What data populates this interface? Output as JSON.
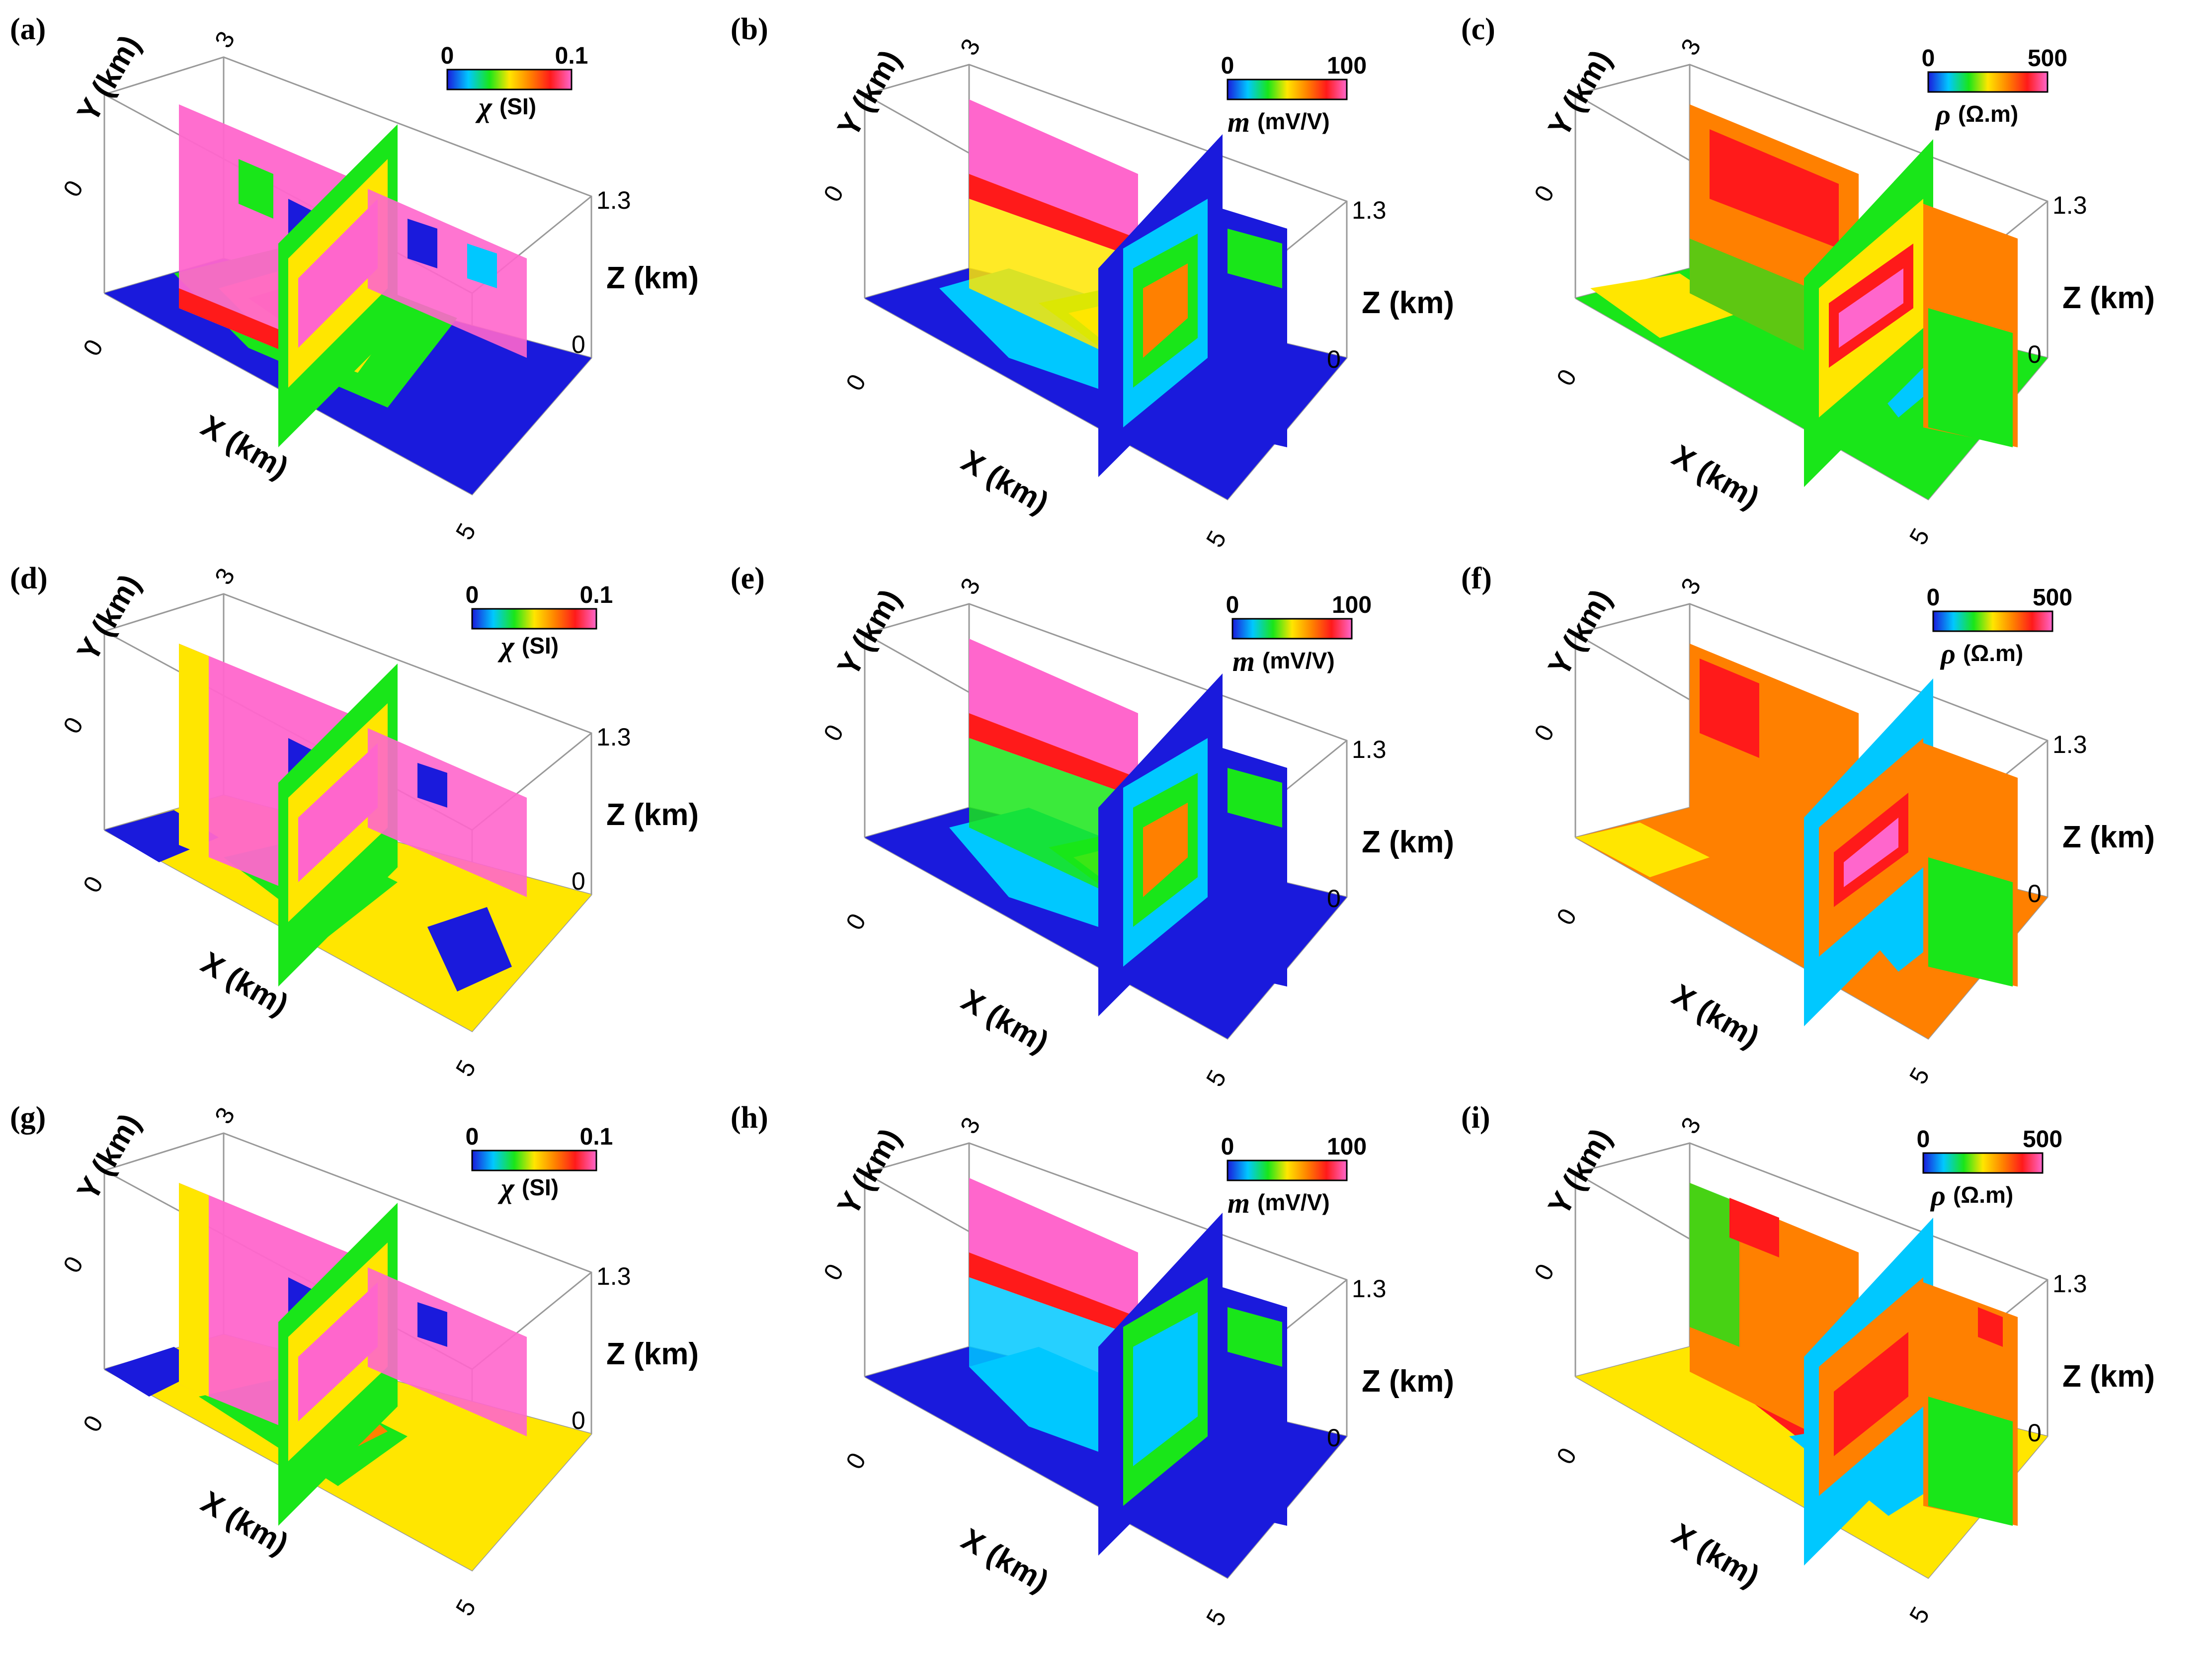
{
  "axes": {
    "x_label": "X (km)",
    "y_label": "Y (km)",
    "z_label": "Z (km)",
    "x_ticks": [
      "0",
      "5"
    ],
    "y_ticks": [
      "0",
      "3"
    ],
    "z_ticks": [
      "0",
      "1.3"
    ]
  },
  "colormap": [
    "#1a1adc",
    "#00c8ff",
    "#19e619",
    "#ffe600",
    "#ff8000",
    "#ff1a1a",
    "#ff66cc"
  ],
  "panels": [
    {
      "label": "(a)",
      "cbar": {
        "min": "0",
        "max": "0.1",
        "symbol": "χ",
        "unit": "(SI)"
      }
    },
    {
      "label": "(b)",
      "cbar": {
        "min": "0",
        "max": "100",
        "symbol": "m",
        "unit": "(mV/V)"
      }
    },
    {
      "label": "(c)",
      "cbar": {
        "min": "0",
        "max": "500",
        "symbol": "ρ",
        "unit": "(Ω.m)"
      }
    },
    {
      "label": "(d)",
      "cbar": {
        "min": "0",
        "max": "0.1",
        "symbol": "χ",
        "unit": "(SI)"
      }
    },
    {
      "label": "(e)",
      "cbar": {
        "min": "0",
        "max": "100",
        "symbol": "m",
        "unit": "(mV/V)"
      }
    },
    {
      "label": "(f)",
      "cbar": {
        "min": "0",
        "max": "500",
        "symbol": "ρ",
        "unit": "(Ω.m)"
      }
    },
    {
      "label": "(g)",
      "cbar": {
        "min": "0",
        "max": "0.1",
        "symbol": "χ",
        "unit": "(SI)"
      }
    },
    {
      "label": "(h)",
      "cbar": {
        "min": "0",
        "max": "100",
        "symbol": "m",
        "unit": "(mV/V)"
      }
    },
    {
      "label": "(i)",
      "cbar": {
        "min": "0",
        "max": "500",
        "symbol": "ρ",
        "unit": "(Ω.m)"
      }
    }
  ]
}
